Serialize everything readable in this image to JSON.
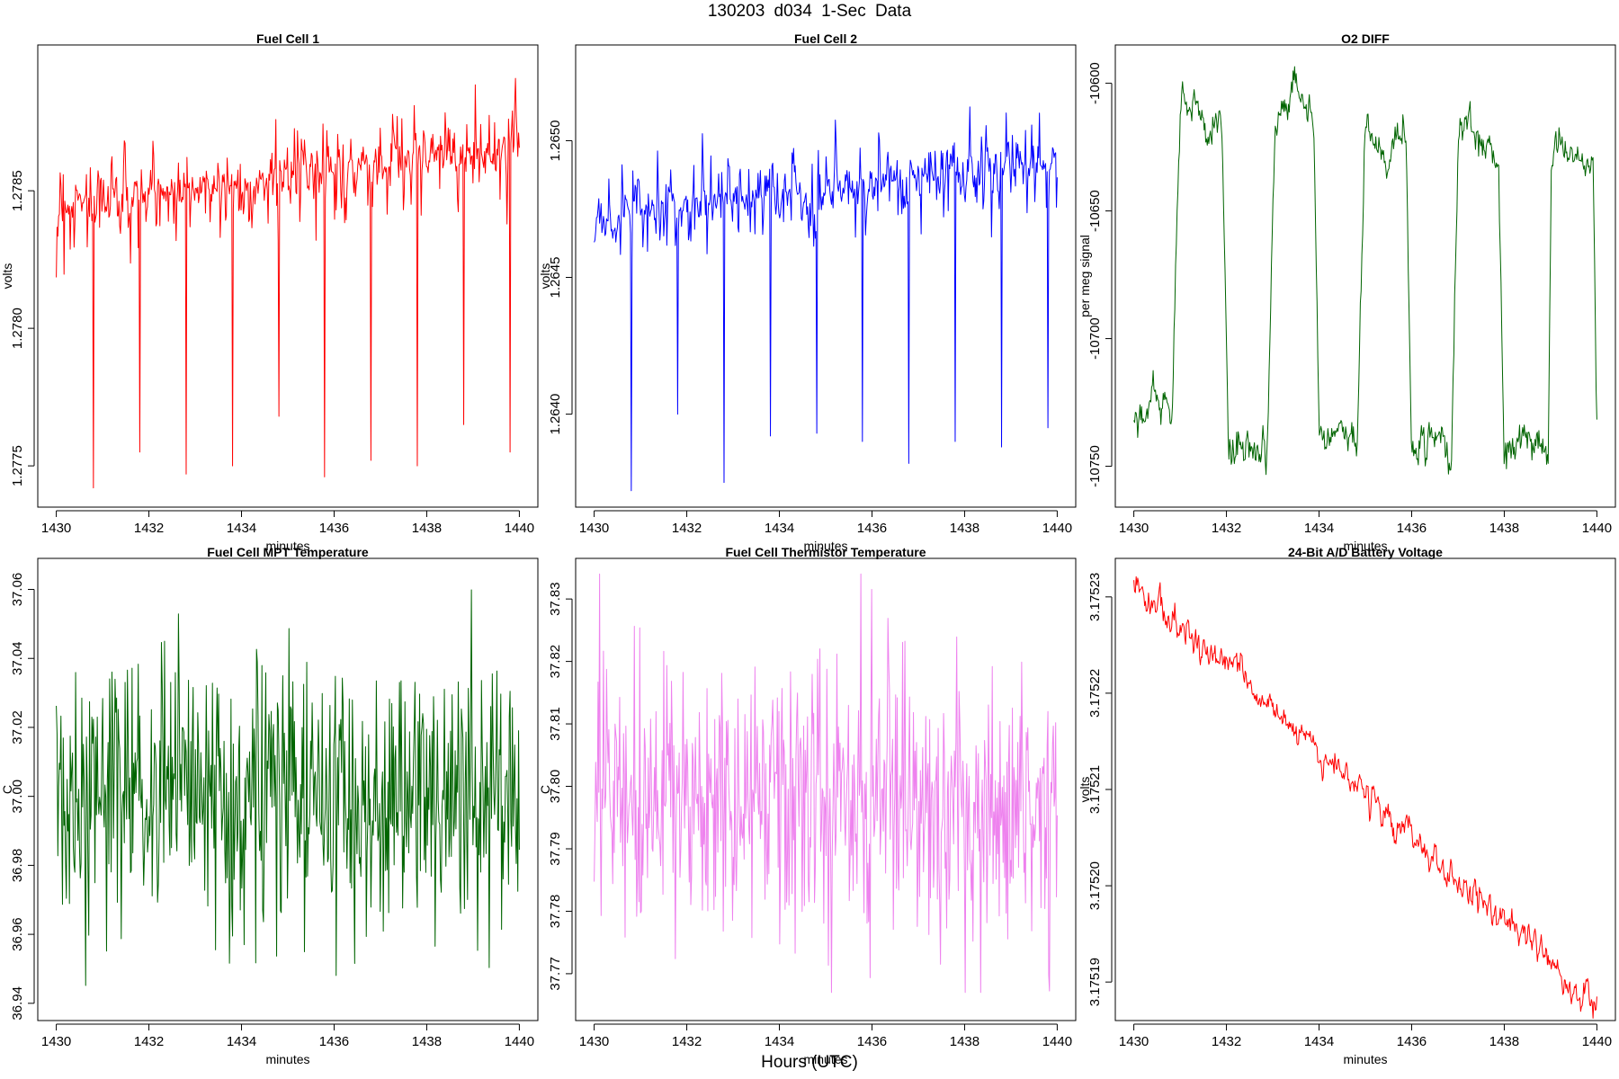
{
  "figure": {
    "title": "130203   d034   1-Sec Data",
    "xlabel": "Hours (UTC)"
  },
  "chart_data": [
    {
      "id": "fc1",
      "type": "line",
      "title": "Fuel Cell 1",
      "xlabel": "minutes",
      "ylabel": "volts",
      "color": "#ff0000",
      "xlim": [
        1429.6,
        1440.4
      ],
      "ylim": [
        1.27735,
        1.27903
      ],
      "xticks": [
        1430,
        1432,
        1434,
        1436,
        1438,
        1440
      ],
      "yticks": [
        1.2775,
        1.278,
        1.2785
      ],
      "ytick_labels": [
        "1.2775",
        "1.2780",
        "1.2785"
      ],
      "series": [
        {
          "name": "Fuel Cell 1",
          "x_start": 1430,
          "x_end": 1440,
          "points": 600,
          "pattern": "noisy-drift-with-dips",
          "start_level": 1.27845,
          "end_level": 1.27866,
          "noise": 6e-05,
          "dips": [
            {
              "x": 1430.8,
              "y": 1.27742
            },
            {
              "x": 1431.8,
              "y": 1.27755
            },
            {
              "x": 1432.8,
              "y": 1.27747
            },
            {
              "x": 1433.8,
              "y": 1.2775
            },
            {
              "x": 1434.8,
              "y": 1.27768
            },
            {
              "x": 1435.8,
              "y": 1.27746
            },
            {
              "x": 1436.8,
              "y": 1.27752
            },
            {
              "x": 1437.8,
              "y": 1.2775
            },
            {
              "x": 1438.8,
              "y": 1.27765
            },
            {
              "x": 1439.8,
              "y": 1.27755
            }
          ]
        }
      ]
    },
    {
      "id": "fc2",
      "type": "line",
      "title": "Fuel Cell 2",
      "xlabel": "minutes",
      "ylabel": "volts",
      "color": "#0000ff",
      "xlim": [
        1429.6,
        1440.4
      ],
      "ylim": [
        1.26366,
        1.26535
      ],
      "xticks": [
        1430,
        1432,
        1434,
        1436,
        1438,
        1440
      ],
      "yticks": [
        1.264,
        1.2645,
        1.265
      ],
      "ytick_labels": [
        "1.2640",
        "1.2645",
        "1.2650"
      ],
      "series": [
        {
          "name": "Fuel Cell 2",
          "x_start": 1430,
          "x_end": 1440,
          "points": 600,
          "pattern": "noisy-drift-with-dips",
          "start_level": 1.26472,
          "end_level": 1.26492,
          "noise": 6e-05,
          "dips": [
            {
              "x": 1430.8,
              "y": 1.26372
            },
            {
              "x": 1431.8,
              "y": 1.264
            },
            {
              "x": 1432.8,
              "y": 1.26375
            },
            {
              "x": 1433.8,
              "y": 1.26392
            },
            {
              "x": 1434.8,
              "y": 1.26393
            },
            {
              "x": 1435.8,
              "y": 1.2639
            },
            {
              "x": 1436.8,
              "y": 1.26382
            },
            {
              "x": 1437.8,
              "y": 1.2639
            },
            {
              "x": 1438.8,
              "y": 1.26388
            },
            {
              "x": 1439.8,
              "y": 1.26395
            }
          ]
        }
      ]
    },
    {
      "id": "o2",
      "type": "line",
      "title": "O2 DIFF",
      "xlabel": "minutes",
      "ylabel": "per meg signal",
      "color": "#006400",
      "xlim": [
        1429.6,
        1440.4
      ],
      "ylim": [
        -10766,
        -10585
      ],
      "xticks": [
        1430,
        1432,
        1434,
        1436,
        1438,
        1440
      ],
      "yticks": [
        -10750,
        -10700,
        -10650,
        -10600
      ],
      "ytick_labels": [
        "-10750",
        "-10700",
        "-10650",
        "-10600"
      ],
      "series": [
        {
          "name": "O2 DIFF",
          "x_start": 1430,
          "x_end": 1440,
          "points": 600,
          "pattern": "square-wave",
          "noise": 5,
          "segments": [
            {
              "x0": 1430.0,
              "x1": 1430.82,
              "y": -10735
            },
            {
              "x0": 1431.02,
              "x1": 1431.9,
              "y": -10610
            },
            {
              "x0": 1432.05,
              "x1": 1432.88,
              "y": -10740
            },
            {
              "x0": 1433.05,
              "x1": 1433.88,
              "y": -10612
            },
            {
              "x0": 1434.0,
              "x1": 1434.82,
              "y": -10738
            },
            {
              "x0": 1435.0,
              "x1": 1435.88,
              "y": -10625
            },
            {
              "x0": 1436.0,
              "x1": 1436.85,
              "y": -10742
            },
            {
              "x0": 1437.0,
              "x1": 1437.88,
              "y": -10625
            },
            {
              "x0": 1438.0,
              "x1": 1438.95,
              "y": -10738
            },
            {
              "x0": 1439.02,
              "x1": 1439.92,
              "y": -10625
            },
            {
              "x0": 1440.0,
              "x1": 1440.0,
              "y": -10730
            }
          ]
        }
      ]
    },
    {
      "id": "mpt",
      "type": "line",
      "title": "Fuel Cell MPT Temperature",
      "xlabel": "minutes",
      "ylabel": "C",
      "color": "#006400",
      "xlim": [
        1429.6,
        1440.4
      ],
      "ylim": [
        36.935,
        37.069
      ],
      "xticks": [
        1430,
        1432,
        1434,
        1436,
        1438,
        1440
      ],
      "yticks": [
        36.94,
        36.96,
        36.98,
        37.0,
        37.02,
        37.04,
        37.06
      ],
      "ytick_labels": [
        "36.94",
        "36.96",
        "36.98",
        "37.00",
        "37.02",
        "37.04",
        "37.06"
      ],
      "series": [
        {
          "name": "Fuel Cell MPT Temperature",
          "x_start": 1430,
          "x_end": 1440,
          "points": 600,
          "pattern": "noise",
          "center": 37.0,
          "amplitude": 0.02,
          "min": 36.94,
          "max": 37.065
        }
      ]
    },
    {
      "id": "therm",
      "type": "line",
      "title": "Fuel Cell Thermistor Temperature",
      "xlabel": "minutes",
      "ylabel": "C",
      "color": "#ee82ee",
      "xlim": [
        1429.6,
        1440.4
      ],
      "ylim": [
        37.7625,
        37.8365
      ],
      "xticks": [
        1430,
        1432,
        1434,
        1436,
        1438,
        1440
      ],
      "yticks": [
        37.77,
        37.78,
        37.79,
        37.8,
        37.81,
        37.82,
        37.83
      ],
      "ytick_labels": [
        "37.77",
        "37.78",
        "37.79",
        "37.80",
        "37.81",
        "37.82",
        "37.83"
      ],
      "series": [
        {
          "name": "Fuel Cell Thermistor Temperature",
          "x_start": 1430,
          "x_end": 1440,
          "points": 600,
          "pattern": "noise",
          "center": 37.797,
          "amplitude": 0.011,
          "min": 37.767,
          "max": 37.834
        }
      ]
    },
    {
      "id": "batt",
      "type": "line",
      "title": "24-Bit A/D Battery Voltage",
      "xlabel": "minutes",
      "ylabel": "volts",
      "color": "#ff0000",
      "xlim": [
        1429.6,
        1440.4
      ],
      "ylim": [
        3.175186,
        3.175234
      ],
      "xticks": [
        1430,
        1432,
        1434,
        1436,
        1438,
        1440
      ],
      "yticks": [
        3.17519,
        3.1752,
        3.17521,
        3.17522,
        3.17523
      ],
      "ytick_labels": [
        "3.17519",
        "3.17520",
        "3.17521",
        "3.17522",
        "3.17523"
      ],
      "series": [
        {
          "name": "24-Bit A/D Battery Voltage",
          "x_start": 1430,
          "x_end": 1440,
          "points": 600,
          "pattern": "linear-decline",
          "start_value": 3.1752315,
          "end_value": 3.1751875,
          "noise": 1.2e-06
        }
      ]
    }
  ]
}
